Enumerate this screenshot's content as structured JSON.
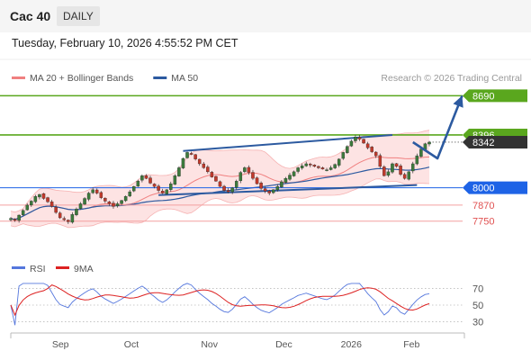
{
  "header": {
    "symbol": "Cac 40",
    "timeframe": "DAILY",
    "timestamp": "Tuesday, February 10, 2026 4:55:52 PM CET"
  },
  "colors": {
    "bollinger": "#f08080",
    "bollinger_fill": "#fde3e3",
    "ma50": "#2c5aa0",
    "up": "#3c7a3c",
    "down": "#c0392b",
    "resistance": "#5aa71e",
    "support": "#1e63e6",
    "target": "#e05050",
    "current": "#333333",
    "rsi": "#5577dd",
    "rsi_ma": "#dd2222",
    "forecast": "#2c5aa0"
  },
  "chart_data": [
    {
      "type": "candlestick",
      "legend": [
        {
          "name": "MA 20 + Bollinger Bands",
          "color": "#f08080"
        },
        {
          "name": "MA 50",
          "color": "#2c5aa0"
        }
      ],
      "copyright": "Research © 2026 Trading Central",
      "ylim": [
        7640,
        8760
      ],
      "x_months": [
        "Sep",
        "Oct",
        "Nov",
        "Dec",
        "2026",
        "Feb"
      ],
      "levels": [
        {
          "label": "8690",
          "value": 8690,
          "kind": "resistance"
        },
        {
          "label": "8396",
          "value": 8396,
          "kind": "resistance"
        },
        {
          "label": "8342",
          "value": 8342,
          "kind": "current"
        },
        {
          "label": "8000",
          "value": 8000,
          "kind": "support"
        },
        {
          "label": "7870",
          "value": 7870,
          "kind": "target"
        },
        {
          "label": "7750",
          "value": 7750,
          "kind": "target"
        }
      ],
      "channel": {
        "upper": [
          [
            42,
            8276
          ],
          [
            93,
            8396
          ]
        ],
        "lower": [
          [
            36,
            7945
          ],
          [
            99,
            8020
          ]
        ]
      },
      "forecast": [
        [
          98,
          8342
        ],
        [
          104,
          8220
        ],
        [
          110,
          8690
        ]
      ],
      "closes": [
        7770,
        7755,
        7795,
        7830,
        7870,
        7900,
        7935,
        7950,
        7920,
        7895,
        7860,
        7815,
        7775,
        7760,
        7745,
        7800,
        7840,
        7880,
        7920,
        7960,
        7985,
        7960,
        7925,
        7900,
        7880,
        7860,
        7880,
        7905,
        7935,
        7970,
        8010,
        8050,
        8090,
        8070,
        8035,
        8010,
        7980,
        7960,
        7985,
        8030,
        8090,
        8150,
        8220,
        8265,
        8250,
        8215,
        8180,
        8150,
        8120,
        8080,
        8050,
        8010,
        7980,
        7970,
        8000,
        8050,
        8115,
        8150,
        8115,
        8070,
        8030,
        7995,
        7975,
        7960,
        7985,
        8010,
        8045,
        8070,
        8095,
        8120,
        8150,
        8165,
        8180,
        8170,
        8160,
        8150,
        8140,
        8135,
        8150,
        8175,
        8215,
        8265,
        8310,
        8350,
        8380,
        8365,
        8335,
        8300,
        8270,
        8240,
        8160,
        8090,
        8120,
        8180,
        8160,
        8100,
        8070,
        8120,
        8180,
        8240,
        8290,
        8330,
        8342
      ]
    },
    {
      "type": "line",
      "legend": [
        {
          "name": "RSI",
          "color": "#5577dd"
        },
        {
          "name": "9MA",
          "color": "#dd2222"
        }
      ],
      "ylim": [
        22,
        78
      ],
      "yticks": [
        30,
        50,
        70
      ]
    }
  ]
}
